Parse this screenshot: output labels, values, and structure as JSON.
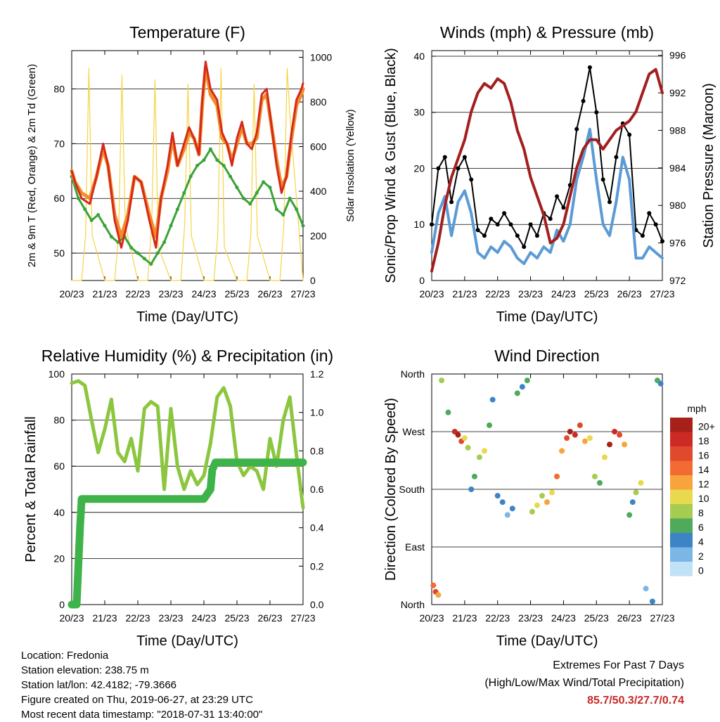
{
  "chart_data": [
    {
      "type": "line",
      "title": "Temperature (F)",
      "xlabel": "Time (Day/UTC)",
      "ylabel_left": "2m & 9m T (Red, Orange) & 2m Td (Green)",
      "ylabel_right": "Solar Insolation (Yellow)",
      "x_ticks": [
        "20/23",
        "21/23",
        "22/23",
        "23/23",
        "24/23",
        "25/23",
        "26/23",
        "27/23"
      ],
      "ylim": [
        45,
        87
      ],
      "y_ticks": [
        50,
        60,
        70,
        80
      ],
      "y2lim": [
        0,
        1030
      ],
      "y2_ticks": [
        0,
        200,
        400,
        600,
        800,
        1000
      ],
      "grid": true,
      "colors": {
        "t2m": "#d42a1c",
        "t9m": "#f28c28",
        "td": "#3aa336",
        "solar": "#f5d442"
      },
      "series": [
        {
          "key": "t2m",
          "x": [
            0,
            0.1,
            0.3,
            0.55,
            0.75,
            0.95,
            1.1,
            1.3,
            1.5,
            1.7,
            1.9,
            2.1,
            2.35,
            2.55,
            2.7,
            2.9,
            3.05,
            3.2,
            3.4,
            3.55,
            3.7,
            3.85,
            3.95,
            4.05,
            4.2,
            4.4,
            4.55,
            4.7,
            4.85,
            5.0,
            5.15,
            5.3,
            5.45,
            5.6,
            5.75,
            5.9,
            6.05,
            6.2,
            6.35,
            6.5,
            6.65,
            6.8,
            6.95,
            7.0
          ],
          "values": [
            65,
            63,
            60,
            59,
            64,
            70,
            66,
            56,
            51,
            56,
            64,
            63,
            56,
            51,
            60,
            66,
            72,
            66,
            70,
            73,
            71,
            68,
            78,
            85,
            80,
            78,
            72,
            70,
            66,
            71,
            74,
            70,
            69,
            72,
            79,
            80,
            73,
            66,
            61,
            64,
            72,
            78,
            80,
            81
          ]
        },
        {
          "key": "t9m",
          "x": [
            0,
            0.1,
            0.3,
            0.55,
            0.75,
            0.95,
            1.1,
            1.3,
            1.5,
            1.7,
            1.9,
            2.1,
            2.35,
            2.55,
            2.7,
            2.9,
            3.05,
            3.2,
            3.4,
            3.55,
            3.7,
            3.85,
            3.95,
            4.05,
            4.2,
            4.4,
            4.55,
            4.7,
            4.85,
            5.0,
            5.15,
            5.3,
            5.45,
            5.6,
            5.75,
            5.9,
            6.05,
            6.2,
            6.35,
            6.5,
            6.65,
            6.8,
            6.95,
            7.0
          ],
          "values": [
            65,
            63,
            61,
            60,
            64,
            69,
            66,
            57,
            53,
            57,
            64,
            63,
            57,
            53,
            60,
            65,
            71,
            66,
            69,
            72,
            71,
            68,
            77,
            84,
            79,
            77,
            71,
            70,
            67,
            70,
            73,
            70,
            70,
            71,
            78,
            79,
            73,
            67,
            62,
            64,
            71,
            77,
            79,
            80
          ]
        },
        {
          "key": "td",
          "x": [
            0,
            0.2,
            0.4,
            0.6,
            0.8,
            1.0,
            1.2,
            1.4,
            1.6,
            1.8,
            2.0,
            2.2,
            2.4,
            2.6,
            2.8,
            3.0,
            3.2,
            3.4,
            3.6,
            3.8,
            4.0,
            4.2,
            4.4,
            4.6,
            4.8,
            5.0,
            5.2,
            5.4,
            5.6,
            5.8,
            6.0,
            6.2,
            6.4,
            6.6,
            6.8,
            7.0
          ],
          "values": [
            64,
            60,
            58,
            56,
            57,
            55,
            53,
            52,
            53,
            51,
            50,
            49,
            48,
            50,
            52,
            55,
            58,
            61,
            64,
            66,
            67,
            69,
            67,
            66,
            64,
            62,
            60,
            59,
            61,
            63,
            62,
            58,
            57,
            60,
            58,
            55
          ]
        },
        {
          "key": "solar",
          "x": [
            0,
            0.3,
            0.42,
            0.52,
            0.62,
            1.0,
            1.3,
            1.42,
            1.52,
            1.62,
            2.0,
            2.3,
            2.42,
            2.52,
            2.62,
            3.0,
            3.3,
            3.42,
            3.52,
            3.62,
            4.0,
            4.3,
            4.42,
            4.52,
            4.62,
            5.0,
            5.3,
            5.42,
            5.52,
            5.62,
            6.0,
            6.3,
            6.42,
            6.52,
            6.62,
            7.0
          ],
          "values": [
            0,
            0,
            200,
            950,
            200,
            0,
            0,
            200,
            920,
            250,
            0,
            0,
            250,
            900,
            150,
            0,
            0,
            250,
            880,
            200,
            0,
            0,
            200,
            950,
            150,
            0,
            0,
            200,
            880,
            200,
            0,
            0,
            250,
            950,
            700,
            0
          ]
        }
      ]
    },
    {
      "type": "line",
      "title": "Winds (mph) & Pressure (mb)",
      "xlabel": "Time (Day/UTC)",
      "ylabel_left": "Sonic/Prop Wind & Gust (Blue, Black)",
      "ylabel_right": "Station Pressure (Maroon)",
      "x_ticks": [
        "20/23",
        "21/23",
        "22/23",
        "23/23",
        "24/23",
        "25/23",
        "26/23",
        "27/23"
      ],
      "ylim": [
        0,
        41
      ],
      "y_ticks": [
        0,
        10,
        20,
        30,
        40
      ],
      "y2lim": [
        972,
        996.5
      ],
      "y2_ticks": [
        972,
        976,
        980,
        984,
        988,
        992,
        996
      ],
      "grid": true,
      "colors": {
        "wind": "#5b9bd5",
        "gust": "#000000",
        "pressure": "#a31f1f"
      },
      "series": [
        {
          "key": "wind",
          "x": [
            0,
            0.2,
            0.4,
            0.6,
            0.8,
            1.0,
            1.2,
            1.4,
            1.6,
            1.8,
            2.0,
            2.2,
            2.4,
            2.6,
            2.8,
            3.0,
            3.2,
            3.4,
            3.6,
            3.8,
            4.0,
            4.2,
            4.4,
            4.6,
            4.8,
            5.0,
            5.2,
            5.4,
            5.6,
            5.8,
            6.0,
            6.2,
            6.4,
            6.6,
            6.8,
            7.0
          ],
          "values": [
            5,
            12,
            15,
            8,
            14,
            16,
            12,
            5,
            4,
            6,
            5,
            7,
            6,
            4,
            3,
            5,
            4,
            6,
            5,
            9,
            7,
            10,
            18,
            22,
            27,
            18,
            10,
            8,
            14,
            22,
            18,
            4,
            4,
            6,
            5,
            4
          ]
        },
        {
          "key": "gust",
          "x": [
            0,
            0.2,
            0.4,
            0.6,
            0.8,
            1.0,
            1.2,
            1.4,
            1.6,
            1.8,
            2.0,
            2.2,
            2.4,
            2.6,
            2.8,
            3.0,
            3.2,
            3.4,
            3.6,
            3.8,
            4.0,
            4.2,
            4.4,
            4.6,
            4.8,
            5.0,
            5.2,
            5.4,
            5.6,
            5.8,
            6.0,
            6.2,
            6.4,
            6.6,
            6.8,
            7.0
          ],
          "values": [
            10,
            20,
            22,
            14,
            20,
            22,
            18,
            9,
            8,
            11,
            10,
            12,
            10,
            8,
            6,
            10,
            8,
            12,
            11,
            15,
            13,
            17,
            27,
            32,
            38,
            30,
            18,
            14,
            22,
            28,
            26,
            9,
            8,
            12,
            10,
            7
          ]
        },
        {
          "key": "pressure",
          "x": [
            0,
            0.2,
            0.4,
            0.6,
            0.8,
            1.0,
            1.2,
            1.4,
            1.6,
            1.8,
            2.0,
            2.2,
            2.4,
            2.6,
            2.8,
            3.0,
            3.2,
            3.4,
            3.6,
            3.8,
            4.0,
            4.2,
            4.4,
            4.6,
            4.8,
            5.0,
            5.2,
            5.4,
            5.6,
            5.8,
            6.0,
            6.2,
            6.4,
            6.6,
            6.8,
            7.0
          ],
          "values": [
            973,
            976,
            980,
            983,
            985,
            987,
            990,
            992,
            993,
            992.5,
            993.5,
            993,
            991,
            988,
            986,
            983,
            981,
            979,
            976,
            976.5,
            978,
            981,
            984,
            986,
            987,
            987,
            986,
            987,
            988,
            988.5,
            989,
            990,
            992,
            994,
            994.5,
            992
          ]
        }
      ]
    },
    {
      "type": "line",
      "title": "Relative Humidity (%) & Precipitation (in)",
      "xlabel": "Time (Day/UTC)",
      "ylabel_left": "Percent & Total Rainfall",
      "x_ticks": [
        "20/23",
        "21/23",
        "22/23",
        "23/23",
        "24/23",
        "25/23",
        "26/23",
        "27/23"
      ],
      "ylim": [
        0,
        100
      ],
      "y_ticks": [
        0,
        20,
        40,
        60,
        80,
        100
      ],
      "y2lim": [
        0,
        1.2
      ],
      "y2_ticks": [
        "0.0",
        "0.2",
        "0.4",
        "0.6",
        "0.8",
        "1.0",
        "1.2"
      ],
      "grid": true,
      "colors": {
        "rh": "#8cc63f",
        "precip": "#3db34a"
      },
      "series": [
        {
          "key": "rh",
          "x": [
            0,
            0.2,
            0.4,
            0.6,
            0.8,
            1.0,
            1.2,
            1.4,
            1.6,
            1.8,
            2.0,
            2.2,
            2.4,
            2.6,
            2.8,
            3.0,
            3.2,
            3.4,
            3.6,
            3.8,
            4.0,
            4.2,
            4.4,
            4.6,
            4.8,
            5.0,
            5.2,
            5.4,
            5.6,
            5.8,
            6.0,
            6.2,
            6.4,
            6.6,
            6.8,
            7.0
          ],
          "values": [
            96,
            97,
            95,
            80,
            66,
            76,
            89,
            66,
            62,
            72,
            58,
            85,
            88,
            86,
            50,
            85,
            60,
            50,
            58,
            52,
            56,
            70,
            90,
            94,
            86,
            62,
            56,
            60,
            58,
            50,
            72,
            60,
            80,
            90,
            65,
            42
          ]
        },
        {
          "key": "precip",
          "x": [
            0,
            0.15,
            0.25,
            0.3,
            0.5,
            1.0,
            2.0,
            3.0,
            4.0,
            4.2,
            4.25,
            4.35,
            5.0,
            6.0,
            7.0
          ],
          "values": [
            0,
            0,
            0.4,
            0.55,
            0.55,
            0.55,
            0.55,
            0.55,
            0.55,
            0.6,
            0.7,
            0.74,
            0.74,
            0.74,
            0.74
          ]
        }
      ]
    },
    {
      "type": "scatter",
      "title": "Wind Direction",
      "xlabel": "Time (Day/UTC)",
      "ylabel_left": "Direction (Colored By Speed)",
      "x_ticks": [
        "20/23",
        "21/23",
        "22/23",
        "23/23",
        "24/23",
        "25/23",
        "26/23",
        "27/23"
      ],
      "y_ticks": [
        "North",
        "East",
        "South",
        "West",
        "North"
      ],
      "ylim": [
        0,
        360
      ],
      "grid": true,
      "colorbar": {
        "title": "mph",
        "labels": [
          "20+",
          "18",
          "16",
          "14",
          "12",
          "10",
          "8",
          "6",
          "4",
          "2",
          "0"
        ],
        "colors": [
          "#a8201a",
          "#cc2a24",
          "#e04a2c",
          "#f26b32",
          "#f8a43c",
          "#e8d94e",
          "#a6cc52",
          "#4faa5c",
          "#3d84c6",
          "#7ab6e6",
          "#bfe2f6"
        ]
      },
      "series": [
        {
          "name": "",
          "x": [
            0.05,
            0.12,
            0.2,
            0.3,
            0.5,
            0.7,
            0.8,
            0.9,
            1.0,
            1.1,
            1.2,
            1.3,
            1.45,
            1.6,
            1.75,
            1.85,
            2.0,
            2.15,
            2.3,
            2.45,
            2.6,
            2.75,
            2.9,
            3.05,
            3.2,
            3.35,
            3.5,
            3.65,
            3.8,
            3.95,
            4.1,
            4.2,
            4.35,
            4.5,
            4.65,
            4.8,
            4.95,
            5.1,
            5.25,
            5.4,
            5.55,
            5.7,
            5.85,
            6.0,
            6.1,
            6.2,
            6.35,
            6.5,
            6.7,
            6.85,
            6.95
          ],
          "y": [
            30,
            20,
            15,
            350,
            300,
            270,
            265,
            255,
            260,
            245,
            180,
            200,
            230,
            240,
            280,
            320,
            170,
            160,
            140,
            150,
            330,
            340,
            350,
            145,
            155,
            170,
            160,
            175,
            200,
            240,
            260,
            270,
            265,
            280,
            255,
            260,
            200,
            190,
            230,
            250,
            270,
            265,
            250,
            140,
            160,
            175,
            190,
            25,
            5,
            350,
            345
          ],
          "speed": [
            14,
            16,
            12,
            8,
            6,
            18,
            20,
            16,
            10,
            8,
            4,
            6,
            8,
            10,
            6,
            4,
            4,
            3,
            2,
            4,
            6,
            4,
            6,
            8,
            10,
            8,
            12,
            10,
            14,
            12,
            16,
            20,
            18,
            16,
            12,
            10,
            8,
            6,
            10,
            20,
            18,
            16,
            12,
            6,
            4,
            8,
            10,
            2,
            4,
            6,
            4
          ]
        }
      ]
    }
  ],
  "info": {
    "location": "Location: Fredonia",
    "elevation": "Station elevation: 238.75 m",
    "latlon": "Station lat/lon: 42.4182; -79.3666",
    "created": "Figure created on Thu, 2019-06-27, at 23:29 UTC",
    "recent": "Most recent data timestamp: \"2018-07-31 13:40:00\""
  },
  "extremes": {
    "title": "Extremes For Past 7 Days",
    "subtitle": "(High/Low/Max Wind/Total Precipitation)",
    "values": "85.7/50.3/27.7/0.74"
  }
}
